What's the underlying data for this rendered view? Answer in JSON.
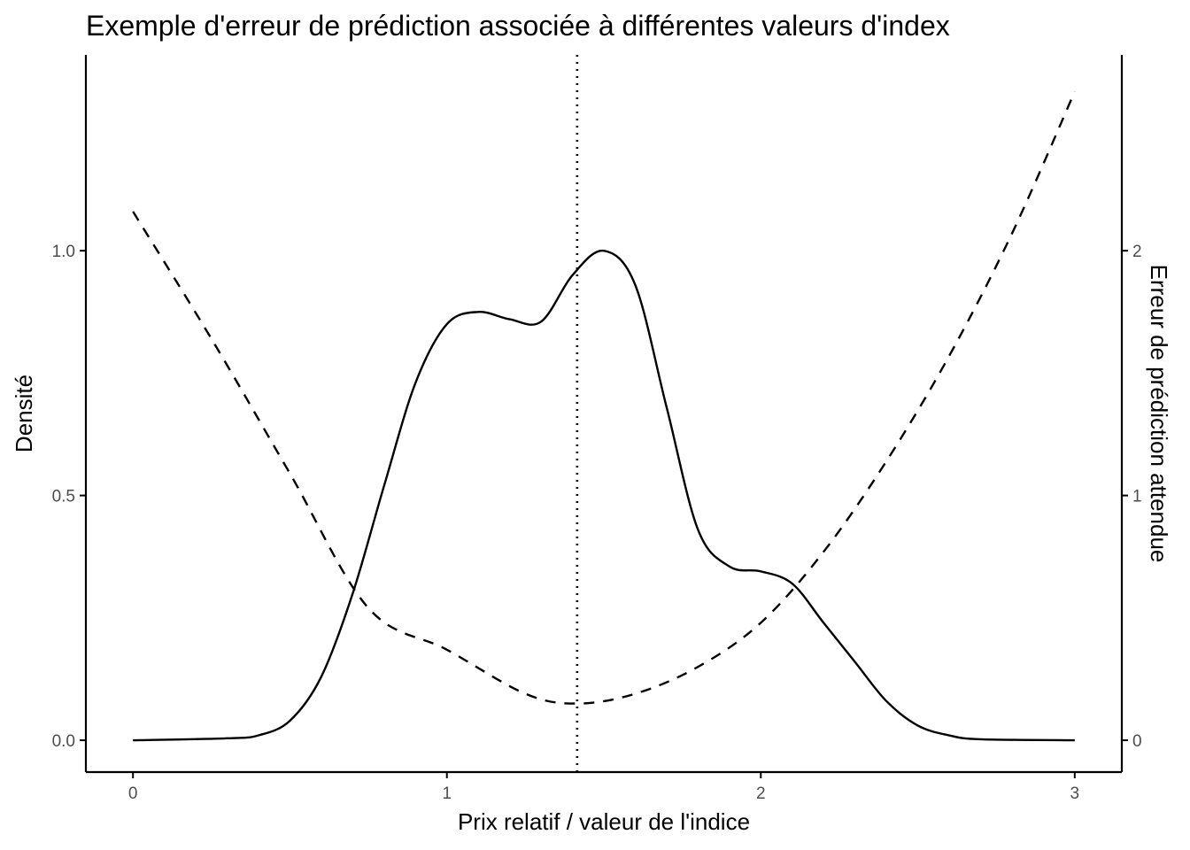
{
  "chart_data": {
    "type": "line",
    "title": "Exemple d'erreur de prédiction associée à différentes valeurs d'index",
    "xlabel": "Prix relatif / valeur de l'indice",
    "ylabel": "Densité",
    "y2label": "Erreur de prédiction attendue",
    "xlim": [
      -0.15,
      3.15
    ],
    "ylim": [
      -0.065,
      1.4
    ],
    "y2lim": [
      -0.13,
      2.8
    ],
    "x_ticks": [
      0,
      1,
      2,
      3
    ],
    "x_tick_labels": [
      "0",
      "1",
      "2",
      "3"
    ],
    "y_ticks": [
      0.0,
      0.5,
      1.0
    ],
    "y_tick_labels": [
      "0.0",
      "0.5",
      "1.0"
    ],
    "y2_ticks": [
      0,
      1,
      2
    ],
    "y2_tick_labels": [
      "0",
      "1",
      "2"
    ],
    "reference_line": {
      "x": 1.415,
      "style": "dotted"
    },
    "grid": false,
    "legend": "none",
    "series": [
      {
        "style": "solid",
        "axis": "left",
        "x": [
          0,
          0.3,
          0.4,
          0.5,
          0.6,
          0.7,
          0.8,
          0.9,
          1.0,
          1.1,
          1.2,
          1.3,
          1.4,
          1.5,
          1.6,
          1.7,
          1.8,
          1.9,
          2.0,
          2.1,
          2.2,
          2.3,
          2.4,
          2.5,
          2.6,
          2.7,
          3.0
        ],
        "values": [
          0.0,
          0.004,
          0.01,
          0.04,
          0.13,
          0.3,
          0.52,
          0.73,
          0.85,
          0.875,
          0.86,
          0.855,
          0.95,
          1.0,
          0.93,
          0.68,
          0.43,
          0.355,
          0.345,
          0.32,
          0.24,
          0.16,
          0.08,
          0.03,
          0.01,
          0.002,
          0.0
        ]
      },
      {
        "style": "dashed",
        "axis": "right",
        "x": [
          0,
          0.25,
          0.5,
          0.75,
          1.0,
          1.25,
          1.415,
          1.6,
          1.8,
          2.0,
          2.2,
          2.4,
          2.6,
          2.8,
          3.0
        ],
        "values": [
          2.16,
          1.64,
          1.09,
          0.54,
          0.37,
          0.19,
          0.15,
          0.19,
          0.3,
          0.48,
          0.77,
          1.14,
          1.57,
          2.07,
          2.65
        ]
      }
    ]
  }
}
